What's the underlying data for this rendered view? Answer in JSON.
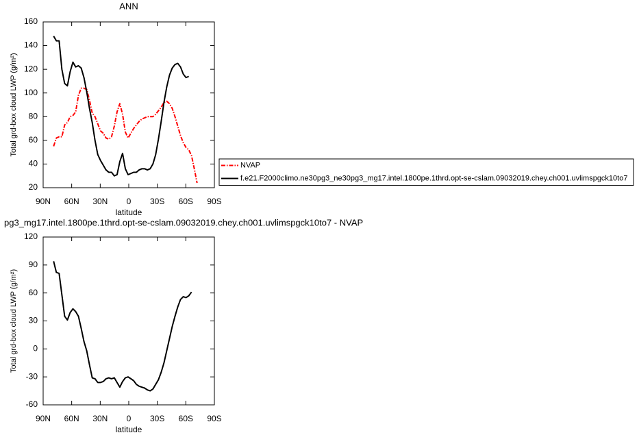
{
  "chart_data": [
    {
      "type": "line",
      "title": "ANN",
      "xlabel": "latitude",
      "ylabel": "Total grd-box cloud LWP (g/m²)",
      "xlim": [
        90,
        -90
      ],
      "xticks": [
        {
          "value": 90,
          "label": "90N"
        },
        {
          "value": 60,
          "label": "60N"
        },
        {
          "value": 30,
          "label": "30N"
        },
        0,
        {
          "value": -30,
          "label": "30S"
        },
        {
          "value": -60,
          "label": "60S"
        },
        {
          "value": -90,
          "label": "90S"
        }
      ],
      "ylim": [
        20,
        160
      ],
      "yticks": [
        20,
        40,
        60,
        80,
        100,
        120,
        140,
        160
      ],
      "grid": false,
      "legend": "right",
      "x": [
        79,
        76.1,
        73.2,
        70.3,
        67.4,
        64.5,
        61.6,
        58.7,
        55.8,
        52.9,
        50,
        47.1,
        44.2,
        41.3,
        38.4,
        35.5,
        32.6,
        29.7,
        26.8,
        23.9,
        21,
        18.1,
        15.2,
        12.3,
        9.4,
        6.5,
        3.6,
        0.7,
        -2.2,
        -5.1,
        -8,
        -10.9,
        -13.8,
        -16.7,
        -19.6,
        -22.5,
        -25.4,
        -28.3,
        -31.2,
        -34.1,
        -37,
        -39.9,
        -42.8,
        -45.7,
        -48.6,
        -51.5,
        -54.4,
        -57.3,
        -60.2,
        -63.1,
        -66,
        -68.9,
        -71.8
      ],
      "series": [
        {
          "name": "NVAP",
          "color": "#ff0000",
          "dash": true,
          "values": [
            55,
            62,
            63,
            63,
            73,
            75,
            80,
            81,
            84,
            98,
            104,
            104,
            103,
            94,
            83,
            80,
            74,
            68,
            66,
            62,
            61,
            63,
            72,
            84,
            91,
            82,
            67,
            62,
            66,
            70,
            73,
            76,
            78,
            79,
            80,
            80,
            80,
            82,
            85,
            88,
            92,
            93,
            91,
            87,
            80,
            72,
            64,
            58,
            54,
            52,
            47,
            36,
            24
          ]
        },
        {
          "name": "f.e21.F2000climo.ne30pg3_ne30pg3_mg17.intel.1800pe.1thrd.opt-se-cslam.09032019.chey.ch001.uvlimspgck10to7",
          "color": "#000000",
          "dash": false,
          "values": [
            148,
            144,
            144,
            120,
            108,
            106,
            118,
            126,
            122,
            123,
            121,
            113,
            101,
            87,
            75,
            60,
            48,
            43,
            39,
            35,
            33,
            33,
            30,
            31,
            42,
            49,
            36,
            31,
            32,
            33,
            33,
            35,
            36,
            36,
            35,
            36,
            40,
            48,
            61,
            76,
            92,
            105,
            115,
            121,
            124,
            125,
            122,
            116,
            113,
            114,
            null,
            null,
            null
          ]
        }
      ]
    },
    {
      "type": "line",
      "title": "pg3_mg17.intel.1800pe.1thrd.opt-se-cslam.09032019.chey.ch001.uvlimspgck10to7 - NVAP",
      "xlabel": "latitude",
      "ylabel": "Total grd-box cloud LWP (g/m²)",
      "xlim": [
        90,
        -90
      ],
      "xticks": [
        {
          "value": 90,
          "label": "90N"
        },
        {
          "value": 60,
          "label": "60N"
        },
        {
          "value": 30,
          "label": "30N"
        },
        0,
        {
          "value": -30,
          "label": "30S"
        },
        {
          "value": -60,
          "label": "60S"
        },
        {
          "value": -90,
          "label": "90S"
        }
      ],
      "ylim": [
        -60,
        120
      ],
      "yticks": [
        -60,
        -30,
        0,
        30,
        60,
        90,
        120
      ],
      "grid": false,
      "x": [
        79,
        76.1,
        73.2,
        70.3,
        67.4,
        64.5,
        61.6,
        58.7,
        55.8,
        52.9,
        50,
        47.1,
        44.2,
        41.3,
        38.4,
        35.5,
        32.6,
        29.7,
        26.8,
        23.9,
        21,
        18.1,
        15.2,
        12.3,
        9.4,
        6.5,
        3.6,
        0.7,
        -2.2,
        -5.1,
        -8,
        -10.9,
        -13.8,
        -16.7,
        -19.6,
        -22.5,
        -25.4,
        -28.3,
        -31.2,
        -34.1,
        -37,
        -39.9,
        -42.8,
        -45.7,
        -48.6,
        -51.5,
        -54.4,
        -57.3,
        -60.2,
        -63.1,
        -66
      ],
      "series": [
        {
          "color": "#000000",
          "dash": false,
          "values": [
            94,
            82,
            81,
            58,
            35,
            31,
            39,
            43,
            40,
            35,
            22,
            8,
            -2,
            -17,
            -31,
            -32,
            -36,
            -36,
            -35,
            -32,
            -31,
            -32,
            -31,
            -36,
            -41,
            -35,
            -31,
            -30,
            -32,
            -34,
            -38,
            -40,
            -41,
            -42,
            -44,
            -45,
            -43,
            -38,
            -33,
            -25,
            -15,
            -2,
            11,
            24,
            35,
            45,
            53,
            56,
            55,
            57,
            61
          ]
        }
      ]
    }
  ]
}
